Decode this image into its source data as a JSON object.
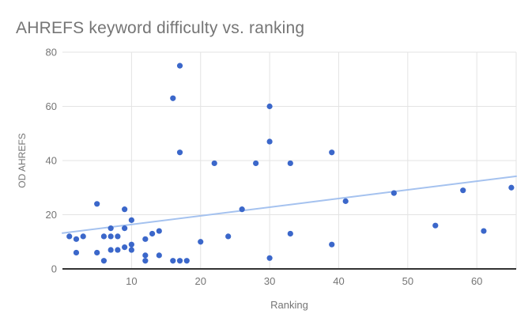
{
  "chart": {
    "title": "AHREFS keyword difficulty vs. ranking",
    "x_axis_title": "Ranking",
    "y_axis_title": "OD AHREFS"
  },
  "chart_data": {
    "type": "scatter",
    "title": "AHREFS keyword difficulty vs. ranking",
    "xlabel": "Ranking",
    "ylabel": "OD AHREFS",
    "xlim": [
      0,
      65.7
    ],
    "ylim": [
      0,
      80
    ],
    "x_ticks": [
      10,
      20,
      30,
      40,
      50,
      60
    ],
    "y_ticks": [
      0,
      20,
      40,
      60,
      80
    ],
    "grid": true,
    "legend": "none",
    "points": [
      [
        1,
        12
      ],
      [
        2,
        11
      ],
      [
        2,
        6
      ],
      [
        3,
        12
      ],
      [
        5,
        24
      ],
      [
        5,
        6
      ],
      [
        6,
        12
      ],
      [
        6,
        3
      ],
      [
        7,
        15
      ],
      [
        7,
        12
      ],
      [
        7,
        7
      ],
      [
        8,
        12
      ],
      [
        8,
        7
      ],
      [
        9,
        22
      ],
      [
        9,
        15
      ],
      [
        9,
        8
      ],
      [
        10,
        18
      ],
      [
        10,
        9
      ],
      [
        10,
        7
      ],
      [
        12,
        11
      ],
      [
        12,
        5
      ],
      [
        12,
        3
      ],
      [
        13,
        13
      ],
      [
        14,
        14
      ],
      [
        14,
        5
      ],
      [
        16,
        63
      ],
      [
        16,
        3
      ],
      [
        17,
        75
      ],
      [
        17,
        43
      ],
      [
        17,
        3
      ],
      [
        18,
        3
      ],
      [
        20,
        10
      ],
      [
        22,
        39
      ],
      [
        24,
        12
      ],
      [
        26,
        22
      ],
      [
        28,
        39
      ],
      [
        30,
        60
      ],
      [
        30,
        47
      ],
      [
        30,
        4
      ],
      [
        33,
        39
      ],
      [
        33,
        13
      ],
      [
        39,
        43
      ],
      [
        39,
        9
      ],
      [
        41,
        25
      ],
      [
        48,
        28
      ],
      [
        54,
        16
      ],
      [
        58,
        29
      ],
      [
        61,
        14
      ],
      [
        65,
        30
      ]
    ],
    "trendline": {
      "x1": 0,
      "y1": 13.2,
      "x2": 65.7,
      "y2": 34.2
    },
    "colors": {
      "point": "#3b67ca",
      "trendline": "#a5c2ef",
      "gridline": "#e3e3e3",
      "axis_line": "#333333",
      "tick_label": "#757575",
      "title": "#757575"
    }
  }
}
